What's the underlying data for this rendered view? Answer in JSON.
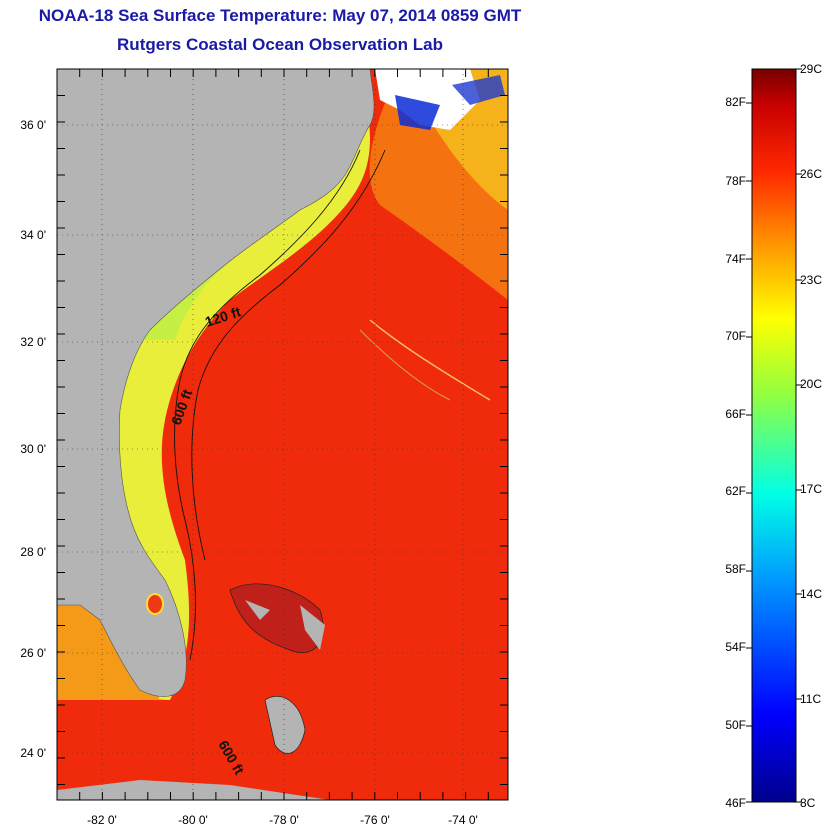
{
  "title": {
    "line1": "NOAA-18 Sea Surface Temperature:  May 07, 2014 0859 GMT",
    "line2": "Rutgers Coastal Ocean Observation Lab"
  },
  "map": {
    "lat_ticks": [
      "36 0'",
      "34 0'",
      "32 0'",
      "30 0'",
      "28 0'",
      "26 0'",
      "24 0'"
    ],
    "lon_ticks": [
      "-82 0'",
      "-80 0'",
      "-78 0'",
      "-76 0'",
      "-74 0'"
    ],
    "contour_labels": [
      "120 ft",
      "600 ft",
      "600 ft"
    ],
    "colors": {
      "land": "#b4b4b4",
      "warm_water": "#f02a0a",
      "shelf_water": "#e6f03c",
      "cloud": "#ffffff"
    }
  },
  "colorbar": {
    "fahrenheit_labels": [
      "82F",
      "78F",
      "74F",
      "70F",
      "66F",
      "62F",
      "58F",
      "54F",
      "50F",
      "46F"
    ],
    "celsius_labels": [
      "29C",
      "26C",
      "23C",
      "20C",
      "17C",
      "14C",
      "11C",
      "8C"
    ],
    "range_c": [
      8,
      29
    ]
  }
}
